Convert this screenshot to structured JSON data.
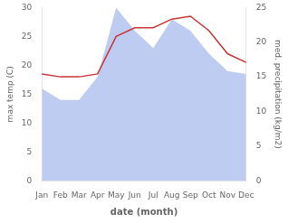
{
  "chart_data": {
    "type": "line",
    "xlabel": "date (month)",
    "ylabel": "max temp (C)",
    "y2label": "med. precipitation (kg/m2)",
    "categories": [
      "Jan",
      "Feb",
      "Mar",
      "Apr",
      "May",
      "Jun",
      "Jul",
      "Aug",
      "Sep",
      "Oct",
      "Nov",
      "Dec"
    ],
    "series": [
      {
        "type": "line",
        "color": "#cc3333",
        "values": [
          18.5,
          18.0,
          18.0,
          18.5,
          25.0,
          26.5,
          26.5,
          28.0,
          28.5,
          26.0,
          22.0,
          20.5
        ]
      },
      {
        "type": "area",
        "color": "#aabbee",
        "axis": "y2",
        "values": [
          13.333333333333334,
          11.666666666666666,
          11.666666666666666,
          15,
          25,
          21.666666666666668,
          19.166666666666668,
          23.333333333333336,
          21.666666666666668,
          18.333333333333336,
          15.833333333333334,
          15.416666666666668
        ]
      }
    ],
    "ylim": [
      0,
      30
    ],
    "yticks": [
      0,
      5,
      10,
      15,
      20,
      25,
      30
    ],
    "y2lim": [
      0,
      25
    ],
    "y2ticks": [
      0,
      5,
      10,
      15,
      20,
      25
    ],
    "grid": false
  }
}
